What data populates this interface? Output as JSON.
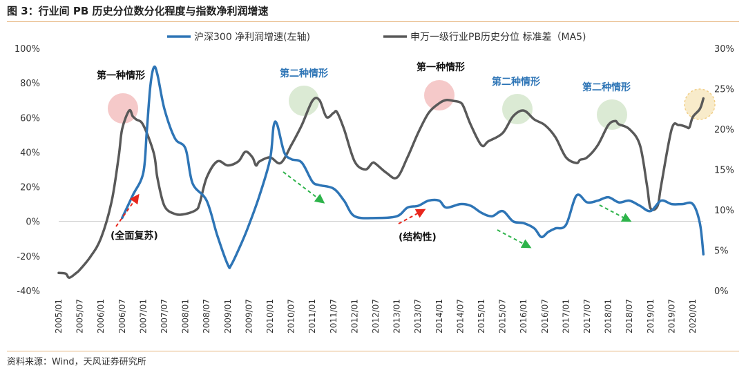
{
  "figure_title": "图 3：行业间 PB 历史分位数分化程度与指数净利润增速",
  "source": "资料来源：Wind，天风证券研究所",
  "colors": {
    "growth": "#2e75b6",
    "pb": "#595959",
    "annot_blue": "#2e75b6",
    "red_arrow": "#e8261c",
    "green_arrow": "#2db34a",
    "circle_red": "#f2b7b7",
    "circle_green": "#cfe3c6",
    "circle_gold": "#e9b03c"
  },
  "chart_data": {
    "type": "line",
    "title": "",
    "legend_position": "top",
    "x_ticks": [
      "2005/01",
      "2005/07",
      "2006/01",
      "2006/07",
      "2007/01",
      "2007/07",
      "2008/01",
      "2008/07",
      "2009/01",
      "2009/07",
      "2010/01",
      "2010/07",
      "2011/01",
      "2011/07",
      "2012/01",
      "2012/07",
      "2013/01",
      "2013/07",
      "2014/01",
      "2014/07",
      "2015/01",
      "2015/07",
      "2016/01",
      "2016/07",
      "2017/01",
      "2017/07",
      "2018/01",
      "2018/07",
      "2019/01",
      "2019/07",
      "2020/01"
    ],
    "y_left": {
      "min": -40,
      "max": 100,
      "step": 20,
      "ticks": [
        "-40%",
        "-20%",
        "0%",
        "20%",
        "40%",
        "60%",
        "80%",
        "100%"
      ]
    },
    "y_right": {
      "min": 0,
      "max": 30,
      "step": 5,
      "ticks": [
        "0%",
        "5%",
        "10%",
        "15%",
        "20%",
        "25%",
        "30%"
      ]
    },
    "series": [
      {
        "name": "沪深300 净利润增速(左轴)",
        "axis": "left",
        "points": [
          [
            "2006/07",
            2
          ],
          [
            "2006/10",
            15
          ],
          [
            "2007/01",
            28
          ],
          [
            "2007/02",
            52
          ],
          [
            "2007/03",
            78
          ],
          [
            "2007/04",
            89
          ],
          [
            "2007/05",
            85
          ],
          [
            "2007/07",
            65
          ],
          [
            "2007/10",
            48
          ],
          [
            "2008/01",
            42
          ],
          [
            "2008/03",
            22
          ],
          [
            "2008/07",
            12
          ],
          [
            "2008/10",
            -8
          ],
          [
            "2009/01",
            -25
          ],
          [
            "2009/02",
            -25
          ],
          [
            "2009/05",
            -12
          ],
          [
            "2009/07",
            -2
          ],
          [
            "2009/10",
            15
          ],
          [
            "2010/01",
            36
          ],
          [
            "2010/02",
            55
          ],
          [
            "2010/03",
            56
          ],
          [
            "2010/05",
            40
          ],
          [
            "2010/07",
            36
          ],
          [
            "2010/10",
            34
          ],
          [
            "2011/01",
            23
          ],
          [
            "2011/03",
            21
          ],
          [
            "2011/07",
            19
          ],
          [
            "2011/10",
            12
          ],
          [
            "2012/01",
            3
          ],
          [
            "2012/07",
            2
          ],
          [
            "2013/01",
            3
          ],
          [
            "2013/04",
            8
          ],
          [
            "2013/07",
            9
          ],
          [
            "2013/10",
            12
          ],
          [
            "2014/01",
            12
          ],
          [
            "2014/03",
            8
          ],
          [
            "2014/07",
            10
          ],
          [
            "2014/10",
            9
          ],
          [
            "2015/01",
            5
          ],
          [
            "2015/04",
            3
          ],
          [
            "2015/07",
            6
          ],
          [
            "2015/10",
            0
          ],
          [
            "2016/01",
            -1
          ],
          [
            "2016/04",
            -4
          ],
          [
            "2016/06",
            -9
          ],
          [
            "2016/08",
            -6
          ],
          [
            "2016/10",
            -4
          ],
          [
            "2017/01",
            -2
          ],
          [
            "2017/04",
            15
          ],
          [
            "2017/07",
            11
          ],
          [
            "2017/10",
            12
          ],
          [
            "2018/01",
            14
          ],
          [
            "2018/04",
            11
          ],
          [
            "2018/07",
            12
          ],
          [
            "2018/10",
            9
          ],
          [
            "2019/01",
            6
          ],
          [
            "2019/04",
            12
          ],
          [
            "2019/07",
            10
          ],
          [
            "2019/10",
            10
          ],
          [
            "2020/01",
            10
          ],
          [
            "2020/03",
            -1
          ],
          [
            "2020/04",
            -19
          ]
        ]
      },
      {
        "name": "申万一级行业PB历史分位 标准差（MA5)",
        "axis": "right",
        "points": [
          [
            "2005/01",
            2.2
          ],
          [
            "2005/03",
            2.1
          ],
          [
            "2005/04",
            1.6
          ],
          [
            "2005/06",
            2.2
          ],
          [
            "2005/07",
            2.6
          ],
          [
            "2005/10",
            4.2
          ],
          [
            "2006/01",
            6.5
          ],
          [
            "2006/04",
            11
          ],
          [
            "2006/06",
            16.5
          ],
          [
            "2006/07",
            20
          ],
          [
            "2006/09",
            22.3
          ],
          [
            "2006/10",
            21.6
          ],
          [
            "2006/11",
            21.2
          ],
          [
            "2007/01",
            20.5
          ],
          [
            "2007/04",
            17
          ],
          [
            "2007/05",
            14
          ],
          [
            "2007/07",
            10.5
          ],
          [
            "2007/10",
            9.5
          ],
          [
            "2008/01",
            9.5
          ],
          [
            "2008/04",
            10
          ],
          [
            "2008/05",
            10.8
          ],
          [
            "2008/07",
            14
          ],
          [
            "2008/10",
            16
          ],
          [
            "2009/01",
            15.5
          ],
          [
            "2009/04",
            16
          ],
          [
            "2009/06",
            17.2
          ],
          [
            "2009/08",
            16.5
          ],
          [
            "2009/09",
            15.5
          ],
          [
            "2009/10",
            16
          ],
          [
            "2010/01",
            16.5
          ],
          [
            "2010/04",
            15.8
          ],
          [
            "2010/07",
            18
          ],
          [
            "2010/10",
            20.5
          ],
          [
            "2011/01",
            23.5
          ],
          [
            "2011/03",
            23.6
          ],
          [
            "2011/05",
            21.5
          ],
          [
            "2011/07",
            22
          ],
          [
            "2011/08",
            22.1
          ],
          [
            "2011/10",
            20
          ],
          [
            "2012/01",
            16
          ],
          [
            "2012/04",
            15
          ],
          [
            "2012/06",
            15.8
          ],
          [
            "2012/07",
            15.7
          ],
          [
            "2012/10",
            14.6
          ],
          [
            "2013/01",
            14
          ],
          [
            "2013/04",
            16.5
          ],
          [
            "2013/07",
            19.5
          ],
          [
            "2013/10",
            22
          ],
          [
            "2014/01",
            23.2
          ],
          [
            "2014/03",
            23.6
          ],
          [
            "2014/05",
            23.5
          ],
          [
            "2014/07",
            23.3
          ],
          [
            "2014/08",
            22.7
          ],
          [
            "2014/10",
            20.5
          ],
          [
            "2015/01",
            18
          ],
          [
            "2015/03",
            18.5
          ],
          [
            "2015/07",
            19.5
          ],
          [
            "2015/10",
            21.6
          ],
          [
            "2016/01",
            22.3
          ],
          [
            "2016/04",
            21.2
          ],
          [
            "2016/07",
            20.5
          ],
          [
            "2016/10",
            19
          ],
          [
            "2017/01",
            16.5
          ],
          [
            "2017/04",
            15.8
          ],
          [
            "2017/05",
            16.2
          ],
          [
            "2017/07",
            16.5
          ],
          [
            "2017/10",
            18
          ],
          [
            "2018/01",
            20.5
          ],
          [
            "2018/03",
            21
          ],
          [
            "2018/04",
            20.6
          ],
          [
            "2018/07",
            20
          ],
          [
            "2018/10",
            18
          ],
          [
            "2018/12",
            13
          ],
          [
            "2019/01",
            10.2
          ],
          [
            "2019/03",
            10.5
          ],
          [
            "2019/04",
            13
          ],
          [
            "2019/07",
            20
          ],
          [
            "2019/09",
            20.5
          ],
          [
            "2019/11",
            20.3
          ],
          [
            "2019/12",
            20.2
          ],
          [
            "2020/01",
            21.5
          ],
          [
            "2020/03",
            22.5
          ],
          [
            "2020/04",
            23.8
          ]
        ]
      }
    ],
    "annotations": [
      {
        "id": "a1",
        "text": "第一种情形",
        "color": "dark"
      },
      {
        "id": "a2",
        "text": "第二种情形",
        "color": "blue"
      },
      {
        "id": "a3",
        "text": "第一种情形",
        "color": "dark"
      },
      {
        "id": "a4",
        "text": "第二种情形",
        "color": "blue"
      },
      {
        "id": "a5",
        "text": "第二种情形",
        "color": "blue"
      },
      {
        "id": "a6",
        "text": "(全面复苏)",
        "color": "dark"
      },
      {
        "id": "a7",
        "text": "(结构性)",
        "color": "dark"
      }
    ]
  }
}
